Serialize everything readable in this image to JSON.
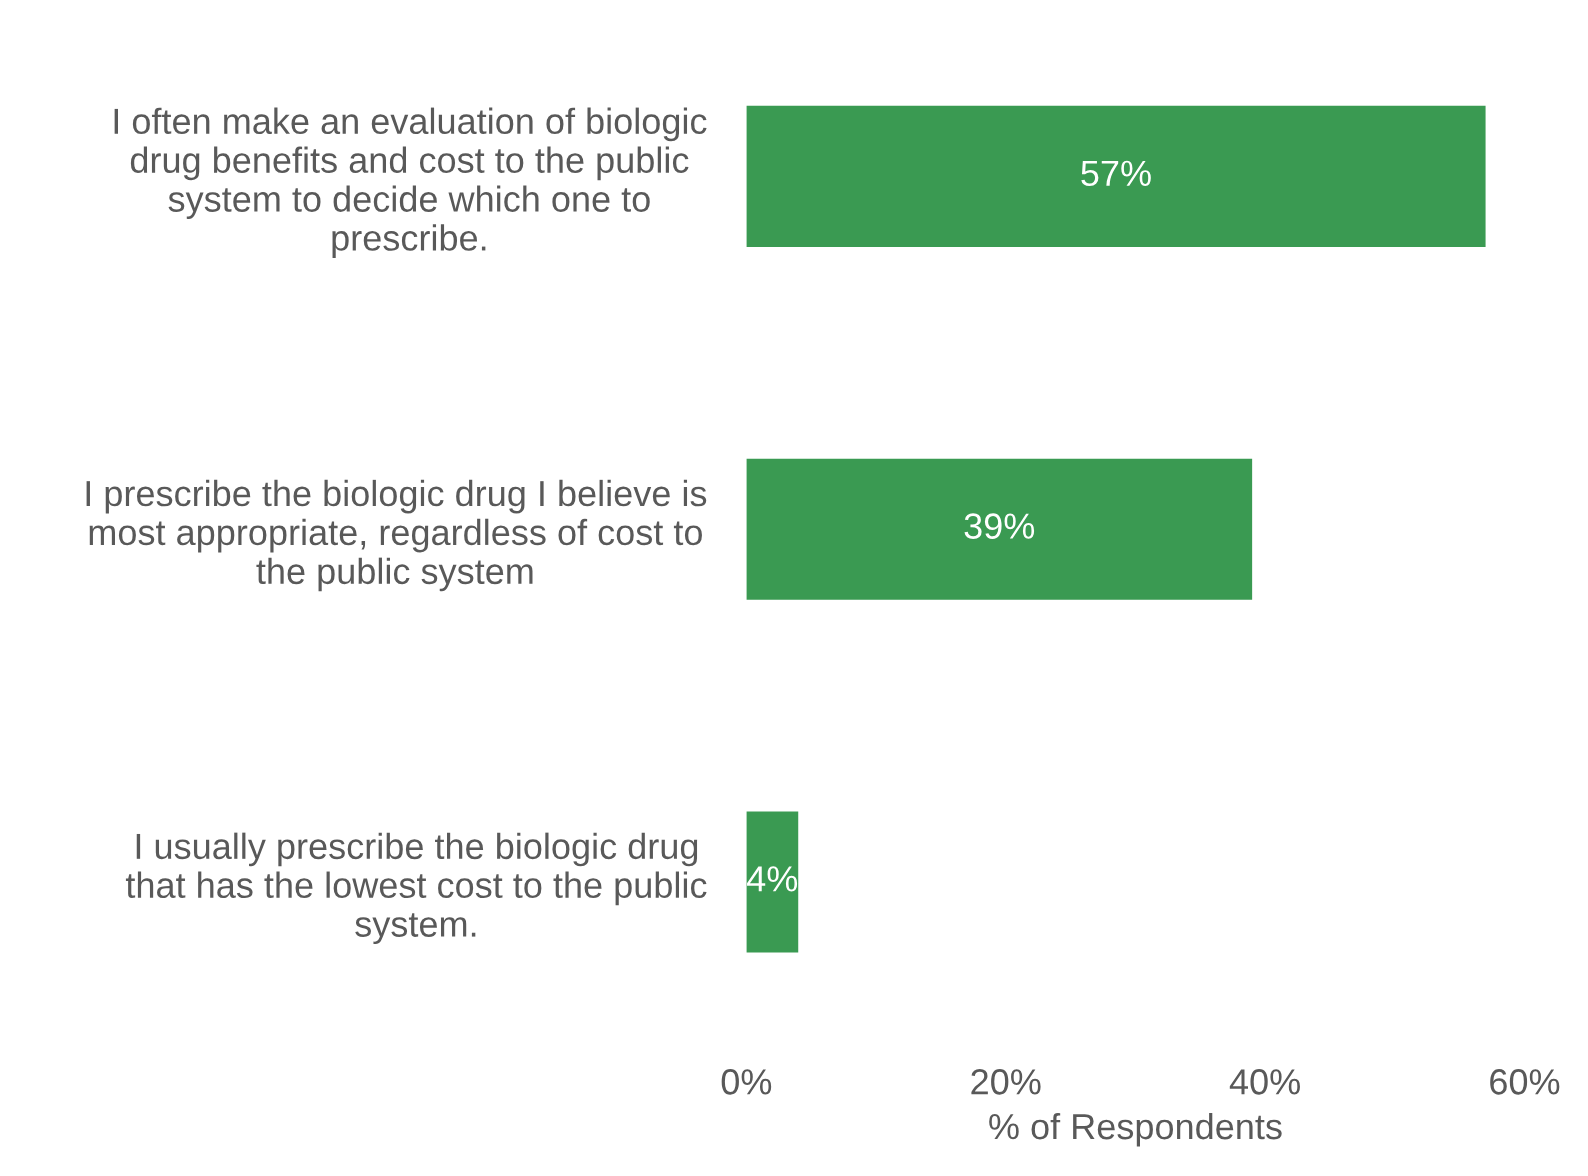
{
  "chart_data": {
    "type": "bar",
    "orientation": "horizontal",
    "xlabel": "% of Respondents",
    "categories": [
      "I often make an evaluation of biologic\ndrug benefits and cost to the public\nsystem to decide which one to\nprescribe.",
      "I prescribe the biologic drug I believe is\nmost appropriate, regardless of cost to\nthe public system",
      "I usually prescribe the biologic drug\nthat has the lowest cost to the public\nsystem."
    ],
    "values": [
      57,
      39,
      4
    ],
    "value_labels": [
      "57%",
      "39%",
      "4%"
    ],
    "color": "#3a9a52",
    "xlim": [
      0,
      60
    ],
    "xticks": [
      {
        "value": 0,
        "label": "0%"
      },
      {
        "value": 20,
        "label": "20%"
      },
      {
        "value": 40,
        "label": "40%"
      },
      {
        "value": 60,
        "label": "60%"
      }
    ],
    "grid": false
  }
}
